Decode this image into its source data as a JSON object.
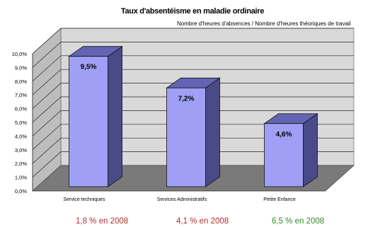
{
  "title": "Taux d'absentéisme en maladie ordinaire",
  "subtitle": "Nombre d'heures d'absences / Nombre d'heures théoriques de travail",
  "chart_data": {
    "type": "bar",
    "title": "Taux d'absentéisme en maladie ordinaire",
    "subtitle": "Nombre d'heures d'absences / Nombre d'heures théoriques de travail",
    "categories": [
      "Service techniques",
      "Services Administratifs",
      "Petite Enfance"
    ],
    "values": [
      9.5,
      7.2,
      4.6
    ],
    "data_labels": [
      "9,5%",
      "7,2%",
      "4,6%"
    ],
    "ylim": [
      0,
      10
    ],
    "yticks": [
      "0,0%",
      "1,0%",
      "2,0%",
      "3,0%",
      "4,0%",
      "5,0%",
      "6,0%",
      "7,0%",
      "8,0%",
      "9,0%",
      "10,0%"
    ],
    "xlabel": "",
    "ylabel": "",
    "grid": true,
    "style": "3d"
  },
  "notes": [
    {
      "text": "1,8 % en 2008",
      "color": "#b03030"
    },
    {
      "text": "4,1 % en 2008",
      "color": "#b03030"
    },
    {
      "text": "6,5 % en 2008",
      "color": "#2e8b2e"
    }
  ],
  "colors": {
    "bar_front": "#9f9ff5",
    "bar_side": "#4a4a88",
    "bar_top": "#6464b4",
    "wall_back": "#d9d9d9",
    "wall_left": "#bdbdbd",
    "floor": "#7a7a7a"
  }
}
